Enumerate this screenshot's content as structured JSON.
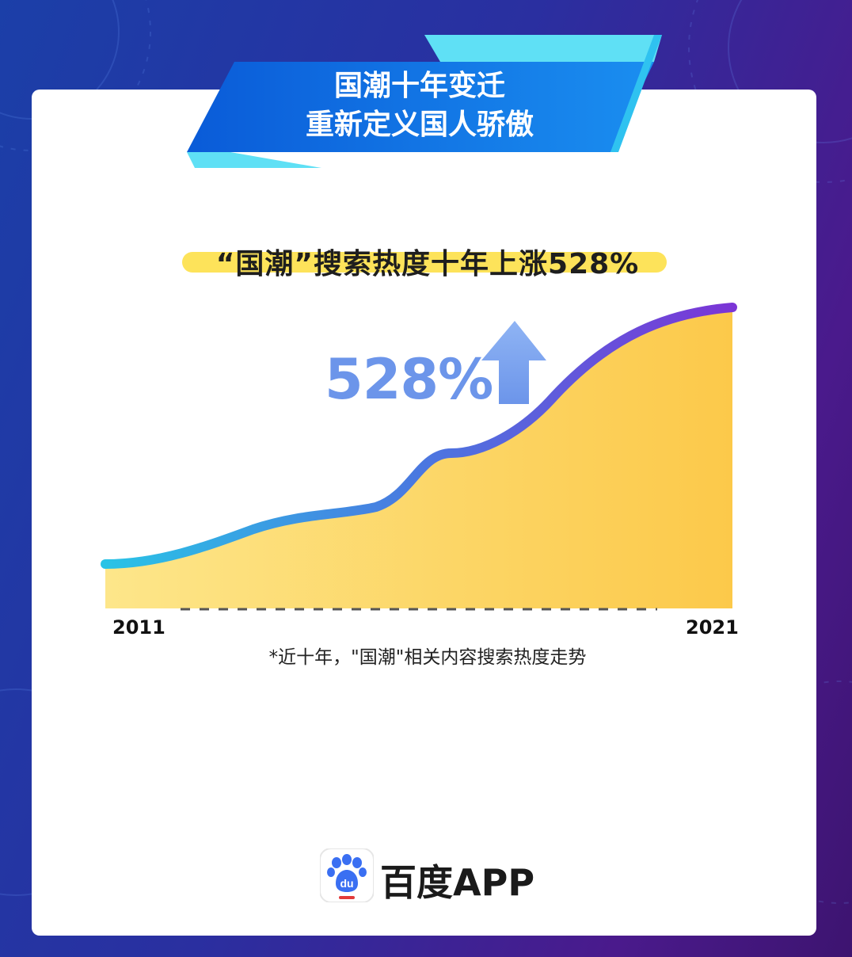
{
  "header": {
    "line1": "国潮十年变迁",
    "line2": "重新定义国人骄傲"
  },
  "chart_data": {
    "type": "area",
    "title": "“国潮”搜索热度十年上涨528%",
    "x": [
      "2011",
      "2021"
    ],
    "x_start_label": "2011",
    "x_end_label": "2021",
    "growth_label": "528%",
    "growth_pct": 528,
    "footnote": "*近十年，\"国潮\"相关内容搜索热度走势",
    "colors": {
      "fill_start": "#fde68a",
      "fill_end": "#fcc94a",
      "line_start": "#29c3e6",
      "line_end": "#7b35d6",
      "arrow": "#6c95ea"
    }
  },
  "footer": {
    "brand": "百度APP",
    "logo_icon": "baidu-paw-icon",
    "logo_text": "du"
  }
}
